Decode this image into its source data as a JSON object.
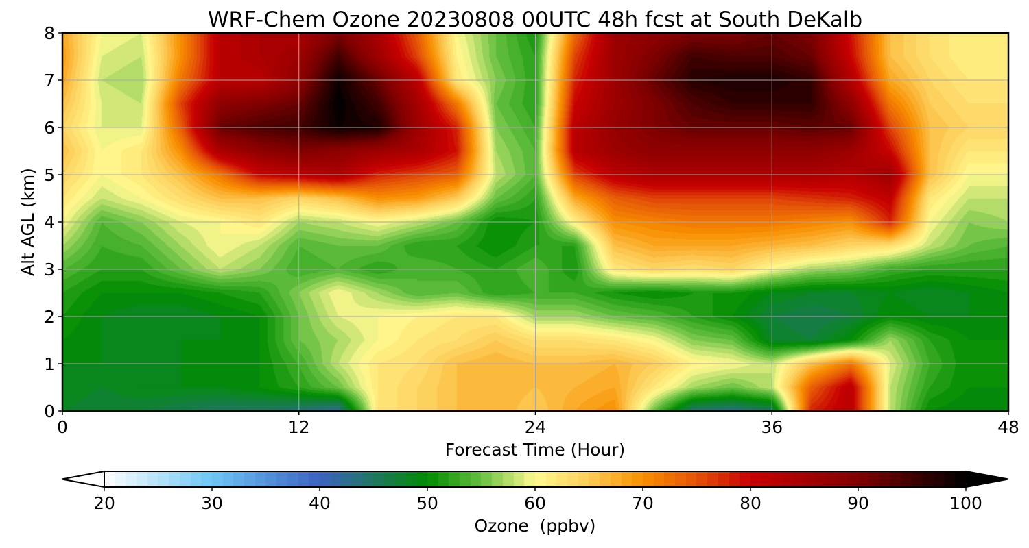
{
  "chart_data": {
    "type": "heatmap",
    "title": "WRF-Chem Ozone  20230808 00UTC 48h fcst at South DeKalb",
    "xlabel": "Forecast Time (Hour)",
    "ylabel": "Alt AGL (km)",
    "xlim": [
      0,
      48
    ],
    "ylim": [
      0,
      8
    ],
    "xticks": [
      0,
      12,
      24,
      36,
      48
    ],
    "yticks": [
      0,
      1,
      2,
      3,
      4,
      5,
      6,
      7,
      8
    ],
    "grid": true,
    "colorbar": {
      "label": "Ozone  (ppbv)",
      "min": 20,
      "max": 100,
      "ticks": [
        20,
        30,
        40,
        50,
        60,
        70,
        80,
        90,
        100
      ],
      "extend": "both",
      "stops": [
        {
          "v": 20,
          "c": "#ffffff"
        },
        {
          "v": 30,
          "c": "#6cc6f4"
        },
        {
          "v": 40,
          "c": "#3d62c2"
        },
        {
          "v": 50,
          "c": "#008c00"
        },
        {
          "v": 55,
          "c": "#66bf40"
        },
        {
          "v": 60,
          "c": "#fffa90"
        },
        {
          "v": 65,
          "c": "#fccc58"
        },
        {
          "v": 70,
          "c": "#f98f00"
        },
        {
          "v": 75,
          "c": "#e45308"
        },
        {
          "v": 80,
          "c": "#c80000"
        },
        {
          "v": 90,
          "c": "#800000"
        },
        {
          "v": 100,
          "c": "#000000"
        }
      ]
    },
    "x": [
      0,
      2,
      4,
      6,
      8,
      10,
      12,
      14,
      16,
      18,
      20,
      22,
      24,
      26,
      28,
      30,
      32,
      34,
      36,
      38,
      40,
      42,
      44,
      46,
      48
    ],
    "y": [
      0,
      0.5,
      1,
      1.5,
      2,
      2.5,
      3,
      3.5,
      4,
      4.5,
      5,
      5.5,
      6,
      6.5,
      7,
      7.5,
      8
    ],
    "z": [
      [
        48,
        47,
        47,
        46,
        45,
        45,
        44,
        42,
        62,
        64,
        66,
        67,
        65,
        68,
        70,
        55,
        44,
        43,
        45,
        78,
        82,
        58,
        50,
        49,
        50
      ],
      [
        49,
        48,
        49,
        49,
        49,
        50,
        52,
        55,
        62,
        64,
        66,
        67,
        66,
        67,
        68,
        62,
        57,
        55,
        58,
        74,
        82,
        58,
        52,
        50,
        50
      ],
      [
        49,
        49,
        48,
        49,
        49,
        50,
        53,
        58,
        62,
        63,
        66,
        67,
        66,
        66,
        67,
        65,
        61,
        60,
        58,
        66,
        72,
        59,
        53,
        50,
        50
      ],
      [
        50,
        49,
        48,
        49,
        49,
        50,
        55,
        57,
        60,
        62,
        63,
        65,
        63,
        63,
        62,
        60,
        56,
        55,
        48,
        47,
        50,
        57,
        52,
        50,
        50
      ],
      [
        51,
        49,
        48,
        48,
        49,
        50,
        55,
        59,
        60,
        61,
        62,
        62,
        57,
        57,
        55,
        54,
        52,
        50,
        47,
        46,
        47,
        50,
        49,
        49,
        50
      ],
      [
        52,
        50,
        50,
        50,
        51,
        52,
        56,
        60,
        57,
        54,
        55,
        52,
        53,
        53,
        51,
        50,
        51,
        51,
        49,
        48,
        48,
        49,
        48,
        49,
        50
      ],
      [
        54,
        52,
        52,
        55,
        58,
        56,
        53,
        54,
        52,
        54,
        53,
        52,
        54,
        51,
        62,
        64,
        63,
        64,
        60,
        57,
        56,
        53,
        52,
        52,
        52
      ],
      [
        57,
        53,
        54,
        57,
        60,
        58,
        54,
        55,
        55,
        52,
        52,
        50,
        52,
        52,
        66,
        68,
        68,
        68,
        67,
        66,
        64,
        63,
        58,
        55,
        54
      ],
      [
        60,
        54,
        56,
        59,
        60,
        62,
        57,
        58,
        60,
        58,
        55,
        50,
        51,
        61,
        70,
        71,
        72,
        72,
        72,
        71,
        70,
        78,
        60,
        56,
        57
      ],
      [
        62,
        58,
        60,
        63,
        66,
        66,
        64,
        66,
        70,
        69,
        65,
        55,
        52,
        68,
        74,
        76,
        76,
        76,
        76,
        77,
        78,
        81,
        62,
        58,
        58
      ],
      [
        64,
        60,
        62,
        66,
        72,
        80,
        82,
        84,
        78,
        76,
        74,
        58,
        54,
        76,
        82,
        84,
        84,
        84,
        84,
        84,
        83,
        86,
        66,
        60,
        60
      ],
      [
        66,
        60,
        62,
        70,
        84,
        88,
        90,
        88,
        86,
        84,
        79,
        57,
        54,
        82,
        86,
        88,
        88,
        88,
        88,
        88,
        86,
        80,
        66,
        62,
        62
      ],
      [
        64,
        59,
        59,
        74,
        92,
        94,
        95,
        99,
        98,
        86,
        78,
        56,
        53,
        82,
        87,
        90,
        92,
        92,
        92,
        93,
        92,
        76,
        66,
        64,
        64
      ],
      [
        66,
        59,
        58,
        76,
        88,
        90,
        92,
        100,
        95,
        85,
        72,
        55,
        52,
        80,
        86,
        90,
        94,
        96,
        96,
        96,
        88,
        72,
        65,
        63,
        63
      ],
      [
        68,
        58,
        57,
        72,
        82,
        82,
        88,
        99,
        92,
        82,
        62,
        56,
        52,
        78,
        86,
        92,
        97,
        98,
        98,
        96,
        83,
        68,
        64,
        62,
        62
      ],
      [
        69,
        59,
        58,
        70,
        82,
        84,
        86,
        95,
        86,
        76,
        61,
        55,
        52,
        76,
        86,
        90,
        95,
        94,
        94,
        92,
        80,
        66,
        63,
        61,
        61
      ],
      [
        68,
        60,
        59,
        70,
        82,
        84,
        84,
        90,
        84,
        74,
        60,
        55,
        51,
        73,
        86,
        88,
        90,
        90,
        92,
        90,
        79,
        66,
        63,
        61,
        61
      ]
    ]
  }
}
